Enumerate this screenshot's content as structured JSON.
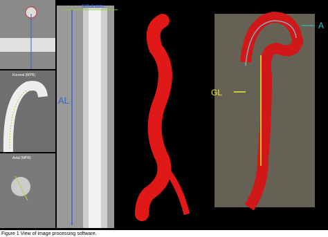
{
  "panels": {
    "coronal_label": "Koronal (MPR)",
    "axial_label": "Axial (MPR)",
    "measurement": "505,8 mm",
    "aortic_length_label": "AL",
    "graft_length_label": "GL",
    "aorta_label": "A"
  },
  "caption": "Figure 1 View of image processing software."
}
